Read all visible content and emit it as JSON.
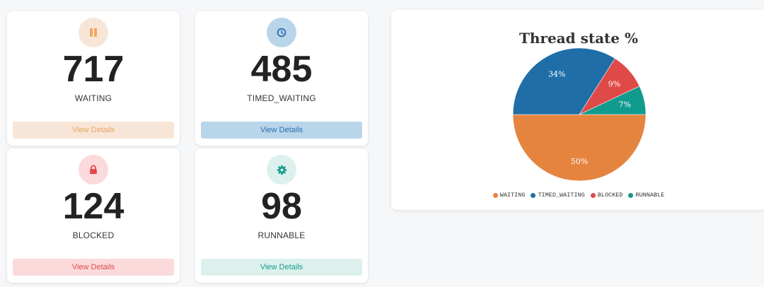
{
  "stats": [
    {
      "value": "717",
      "label": "WAITING",
      "button": "View Details",
      "icon": "pause-icon",
      "accent": "#f2a65a",
      "tint": "#f7e6d8",
      "btn_text": "#e9a35e"
    },
    {
      "value": "485",
      "label": "TIMED_WAITING",
      "button": "View Details",
      "icon": "clock-icon",
      "accent": "#2c6fb0",
      "tint": "#b9d5ea",
      "btn_text": "#2c6fb0"
    },
    {
      "value": "124",
      "label": "BLOCKED",
      "button": "View Details",
      "icon": "lock-icon",
      "accent": "#e0454b",
      "tint": "#fbdadb",
      "btn_text": "#de4a4e"
    },
    {
      "value": "98",
      "label": "RUNNABLE",
      "button": "View Details",
      "icon": "gear-icon",
      "accent": "#179c8c",
      "tint": "#dcf1ee",
      "btn_text": "#179c8c"
    }
  ],
  "chart_data": {
    "type": "pie",
    "title": "Thread state %",
    "legend": "bottom",
    "slices": [
      {
        "name": "WAITING",
        "value": 50,
        "label": "50%",
        "color": "#e5843f"
      },
      {
        "name": "TIMED_WAITING",
        "value": 34,
        "label": "34%",
        "color": "#1f6ea8"
      },
      {
        "name": "BLOCKED",
        "value": 9,
        "label": "9%",
        "color": "#df4a48"
      },
      {
        "name": "RUNNABLE",
        "value": 7,
        "label": "7%",
        "color": "#109b8e"
      }
    ]
  }
}
